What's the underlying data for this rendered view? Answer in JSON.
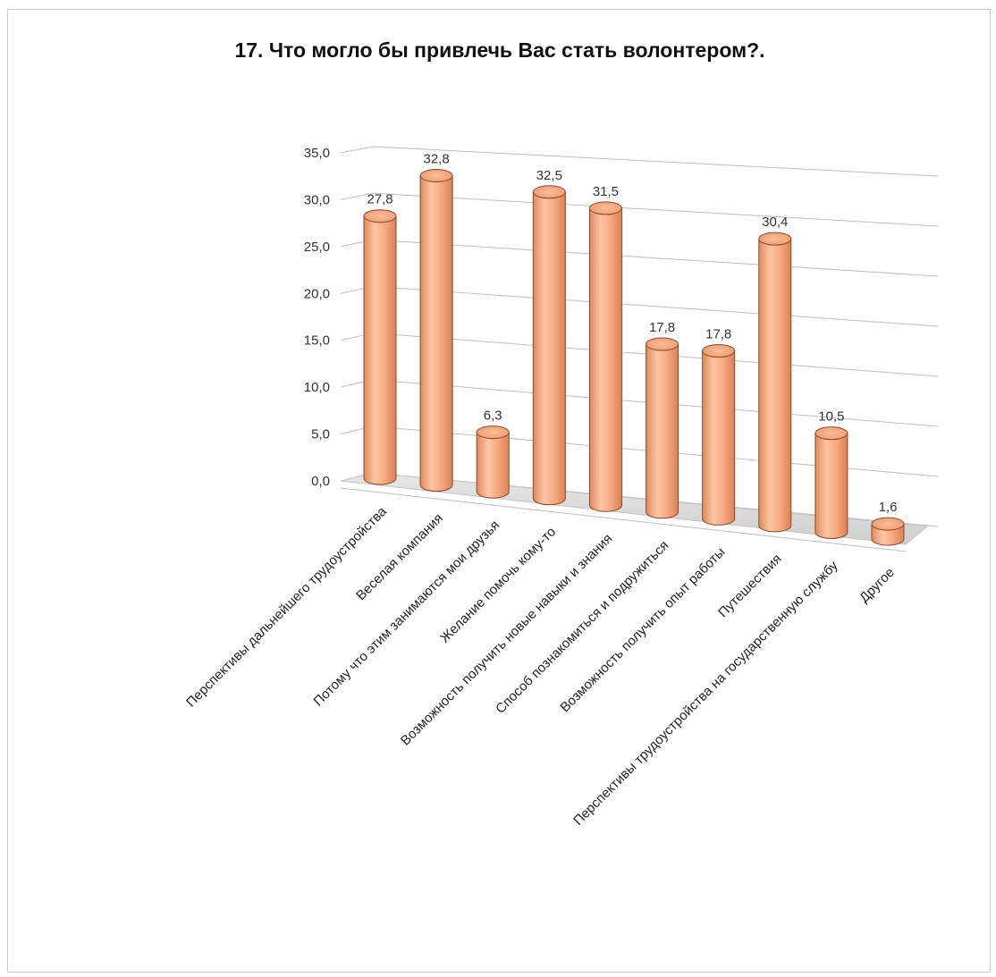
{
  "chart_data": {
    "type": "bar",
    "title": "17. Что могло бы привлечь Вас стать волонтером?.",
    "xlabel": "",
    "ylabel": "",
    "categories": [
      "Перспективы дальнейшего трудоустройства",
      "Веселая компания",
      "Потому что этим занимаются мои друзья",
      "Желание помочь кому-то",
      "Возможность получить новые навыки и знания",
      "Способ познакомиться и подружиться",
      "Возможность получить опыт работы",
      "Путешествия",
      "Перспективы трудоустройства на государственную службу",
      "Другое"
    ],
    "values": [
      27.8,
      32.8,
      6.3,
      32.5,
      31.5,
      17.8,
      17.8,
      30.4,
      10.5,
      1.6
    ],
    "value_labels": [
      "27,8",
      "32,8",
      "6,3",
      "32,5",
      "31,5",
      "17,8",
      "17,8",
      "30,4",
      "10,5",
      "1,6"
    ],
    "ylim": [
      0,
      35
    ],
    "yticks": [
      "0,0",
      "5,0",
      "10,0",
      "15,0",
      "20,0",
      "25,0",
      "30,0",
      "35,0"
    ],
    "grid": true,
    "style": "3d-cylinder",
    "bar_color": "#f4a57a",
    "bar_edge_color": "#8a4a2a"
  }
}
